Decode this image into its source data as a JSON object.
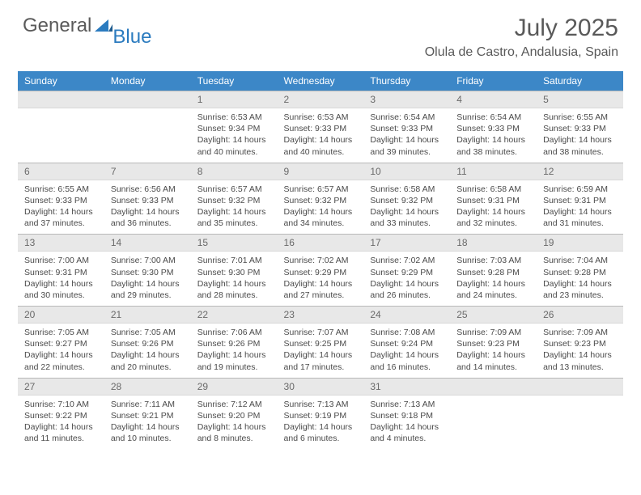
{
  "logo": {
    "text1": "General",
    "text2": "Blue"
  },
  "title": "July 2025",
  "location": "Olula de Castro, Andalusia, Spain",
  "colors": {
    "header_bg": "#3c87c7",
    "header_fg": "#ffffff",
    "daybar_bg": "#e8e8e8",
    "text": "#595959"
  },
  "dow": [
    "Sunday",
    "Monday",
    "Tuesday",
    "Wednesday",
    "Thursday",
    "Friday",
    "Saturday"
  ],
  "weeks": [
    [
      null,
      null,
      {
        "n": "1",
        "sr": "6:53 AM",
        "ss": "9:34 PM",
        "dl": "14 hours and 40 minutes."
      },
      {
        "n": "2",
        "sr": "6:53 AM",
        "ss": "9:33 PM",
        "dl": "14 hours and 40 minutes."
      },
      {
        "n": "3",
        "sr": "6:54 AM",
        "ss": "9:33 PM",
        "dl": "14 hours and 39 minutes."
      },
      {
        "n": "4",
        "sr": "6:54 AM",
        "ss": "9:33 PM",
        "dl": "14 hours and 38 minutes."
      },
      {
        "n": "5",
        "sr": "6:55 AM",
        "ss": "9:33 PM",
        "dl": "14 hours and 38 minutes."
      }
    ],
    [
      {
        "n": "6",
        "sr": "6:55 AM",
        "ss": "9:33 PM",
        "dl": "14 hours and 37 minutes."
      },
      {
        "n": "7",
        "sr": "6:56 AM",
        "ss": "9:33 PM",
        "dl": "14 hours and 36 minutes."
      },
      {
        "n": "8",
        "sr": "6:57 AM",
        "ss": "9:32 PM",
        "dl": "14 hours and 35 minutes."
      },
      {
        "n": "9",
        "sr": "6:57 AM",
        "ss": "9:32 PM",
        "dl": "14 hours and 34 minutes."
      },
      {
        "n": "10",
        "sr": "6:58 AM",
        "ss": "9:32 PM",
        "dl": "14 hours and 33 minutes."
      },
      {
        "n": "11",
        "sr": "6:58 AM",
        "ss": "9:31 PM",
        "dl": "14 hours and 32 minutes."
      },
      {
        "n": "12",
        "sr": "6:59 AM",
        "ss": "9:31 PM",
        "dl": "14 hours and 31 minutes."
      }
    ],
    [
      {
        "n": "13",
        "sr": "7:00 AM",
        "ss": "9:31 PM",
        "dl": "14 hours and 30 minutes."
      },
      {
        "n": "14",
        "sr": "7:00 AM",
        "ss": "9:30 PM",
        "dl": "14 hours and 29 minutes."
      },
      {
        "n": "15",
        "sr": "7:01 AM",
        "ss": "9:30 PM",
        "dl": "14 hours and 28 minutes."
      },
      {
        "n": "16",
        "sr": "7:02 AM",
        "ss": "9:29 PM",
        "dl": "14 hours and 27 minutes."
      },
      {
        "n": "17",
        "sr": "7:02 AM",
        "ss": "9:29 PM",
        "dl": "14 hours and 26 minutes."
      },
      {
        "n": "18",
        "sr": "7:03 AM",
        "ss": "9:28 PM",
        "dl": "14 hours and 24 minutes."
      },
      {
        "n": "19",
        "sr": "7:04 AM",
        "ss": "9:28 PM",
        "dl": "14 hours and 23 minutes."
      }
    ],
    [
      {
        "n": "20",
        "sr": "7:05 AM",
        "ss": "9:27 PM",
        "dl": "14 hours and 22 minutes."
      },
      {
        "n": "21",
        "sr": "7:05 AM",
        "ss": "9:26 PM",
        "dl": "14 hours and 20 minutes."
      },
      {
        "n": "22",
        "sr": "7:06 AM",
        "ss": "9:26 PM",
        "dl": "14 hours and 19 minutes."
      },
      {
        "n": "23",
        "sr": "7:07 AM",
        "ss": "9:25 PM",
        "dl": "14 hours and 17 minutes."
      },
      {
        "n": "24",
        "sr": "7:08 AM",
        "ss": "9:24 PM",
        "dl": "14 hours and 16 minutes."
      },
      {
        "n": "25",
        "sr": "7:09 AM",
        "ss": "9:23 PM",
        "dl": "14 hours and 14 minutes."
      },
      {
        "n": "26",
        "sr": "7:09 AM",
        "ss": "9:23 PM",
        "dl": "14 hours and 13 minutes."
      }
    ],
    [
      {
        "n": "27",
        "sr": "7:10 AM",
        "ss": "9:22 PM",
        "dl": "14 hours and 11 minutes."
      },
      {
        "n": "28",
        "sr": "7:11 AM",
        "ss": "9:21 PM",
        "dl": "14 hours and 10 minutes."
      },
      {
        "n": "29",
        "sr": "7:12 AM",
        "ss": "9:20 PM",
        "dl": "14 hours and 8 minutes."
      },
      {
        "n": "30",
        "sr": "7:13 AM",
        "ss": "9:19 PM",
        "dl": "14 hours and 6 minutes."
      },
      {
        "n": "31",
        "sr": "7:13 AM",
        "ss": "9:18 PM",
        "dl": "14 hours and 4 minutes."
      },
      null,
      null
    ]
  ],
  "labels": {
    "sunrise": "Sunrise:",
    "sunset": "Sunset:",
    "daylight": "Daylight:"
  }
}
